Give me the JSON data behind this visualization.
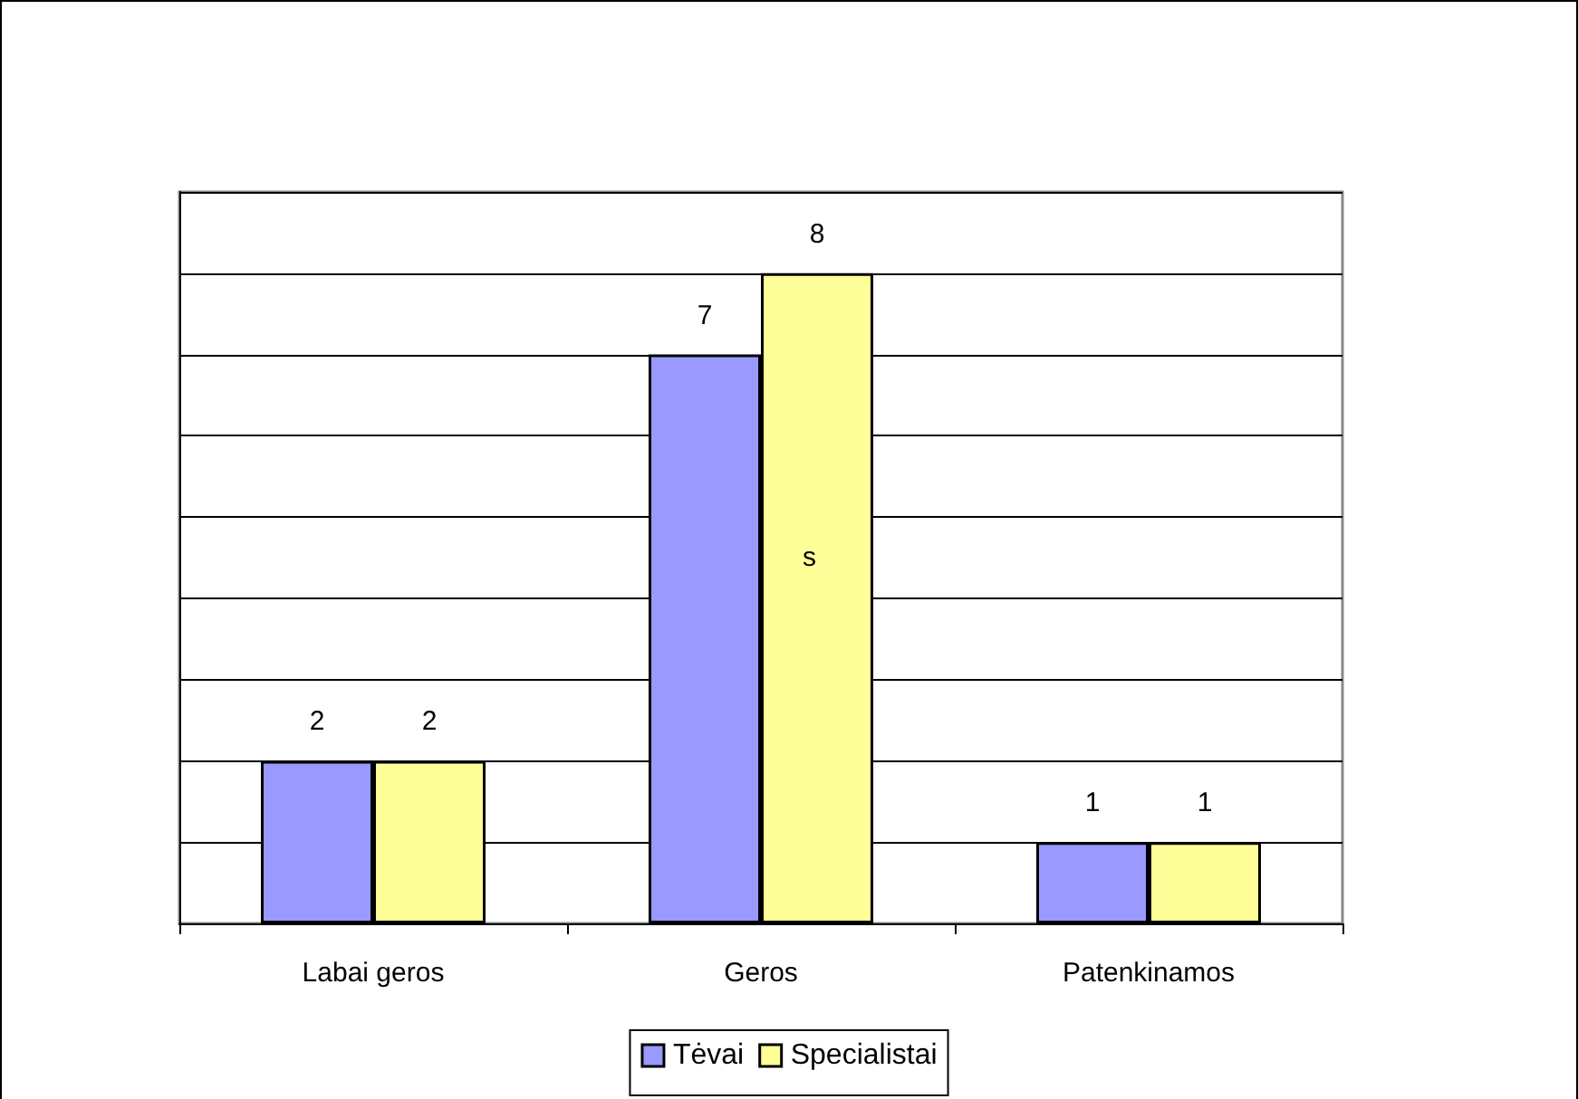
{
  "chart_data": {
    "type": "bar",
    "categories": [
      "Labai geros",
      "Geros",
      "Patenkinamos"
    ],
    "series": [
      {
        "name": "Tėvai",
        "color": "#9999ff",
        "values": [
          2,
          7,
          1
        ]
      },
      {
        "name": "Specialistai",
        "color": "#ffff99",
        "values": [
          2,
          8,
          1
        ]
      }
    ],
    "ylim": [
      0,
      9
    ],
    "yticks": [
      {
        "value": 0,
        "label": null
      },
      {
        "value": 1,
        "label": null
      },
      {
        "value": 2,
        "label": null
      },
      {
        "value": 3,
        "label": null
      },
      {
        "value": 4,
        "label": null
      },
      {
        "value": 5,
        "label": null
      },
      {
        "value": 6,
        "label": null
      },
      {
        "value": 7,
        "label": null
      },
      {
        "value": 8,
        "label": null
      },
      {
        "value": 9,
        "label": null
      }
    ],
    "tick_labels": "x",
    "grid": "y",
    "data_labels": true,
    "legend": "bottom",
    "annotations": [
      {
        "text": "s",
        "x": "Geros",
        "y": 4.5
      }
    ]
  }
}
